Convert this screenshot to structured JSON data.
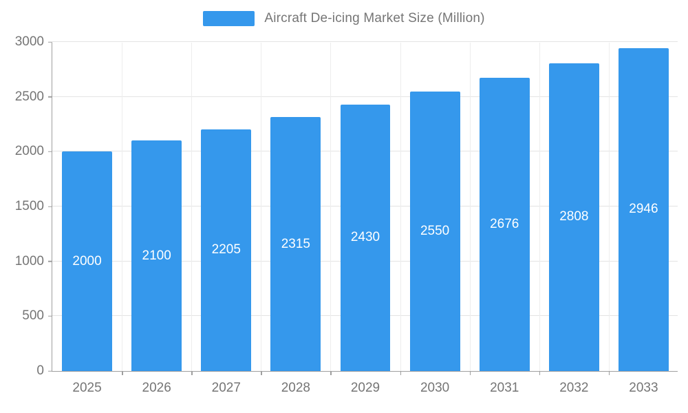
{
  "legend": {
    "label": "Aircraft De-icing Market Size (Million)",
    "swatch_color": "#3598ec"
  },
  "chart_data": {
    "type": "bar",
    "title": "Aircraft De-icing Market Size (Million)",
    "categories": [
      "2025",
      "2026",
      "2027",
      "2028",
      "2029",
      "2030",
      "2031",
      "2032",
      "2033"
    ],
    "values": [
      2000,
      2100,
      2205,
      2315,
      2430,
      2550,
      2676,
      2808,
      2946
    ],
    "series_name": "Aircraft De-icing Market Size (Million)",
    "xlabel": "",
    "ylabel": "",
    "ylim": [
      0,
      3000
    ],
    "ytick_step": 500,
    "ytick_labels": [
      "0",
      "500",
      "1000",
      "1500",
      "2000",
      "2500",
      "3000"
    ],
    "grid": true,
    "legend_position": "top",
    "bar_color": "#3598ec",
    "value_label_color": "#ffffff",
    "axis_text_color": "#757575",
    "background_color": "#ffffff"
  }
}
